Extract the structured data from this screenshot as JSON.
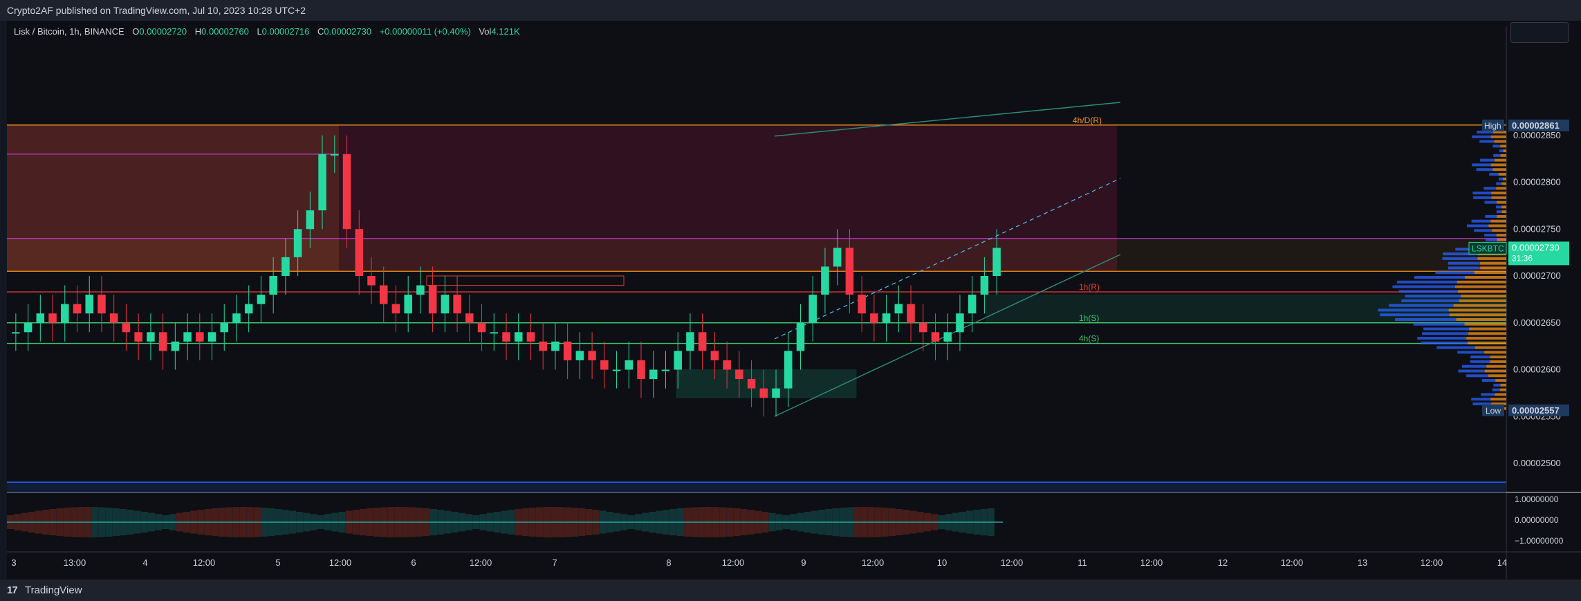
{
  "header": {
    "publisher": "Crypto2AF published on TradingView.com, Jul 10, 2023 10:28 UTC+2"
  },
  "legend": {
    "symbol": "Lisk / Bitcoin, 1h, BINANCE",
    "o_label": "O",
    "o": "0.00002720",
    "h_label": "H",
    "h": "0.00002760",
    "l_label": "L",
    "l": "0.00002716",
    "c_label": "C",
    "c": "0.00002730",
    "change": "+0.00000011 (+0.40%)",
    "vol_label": "Vol",
    "vol": "4.121K"
  },
  "footer": {
    "brand": "TradingView",
    "logo": "17"
  },
  "colors": {
    "up": "#26d9a1",
    "down": "#f23645",
    "bg": "#0d0f14",
    "orange": "#f7931a",
    "pink": "#e040fb",
    "green_line": "#3cc46a",
    "red_line": "#e53935"
  },
  "chart_data": {
    "type": "candlestick",
    "symbol": "LSKBTC",
    "interval": "1h",
    "y_axis": {
      "min": 2.45e-05,
      "max": 2.91e-05,
      "ticks": [
        "0.00002850",
        "0.00002800",
        "0.00002750",
        "0.00002700",
        "0.00002650",
        "0.00002600",
        "0.00002550",
        "0.00002500"
      ]
    },
    "x_axis_ticks": [
      "3",
      "13:00",
      "4",
      "12:00",
      "5",
      "12:00",
      "6",
      "12:00",
      "7",
      "8",
      "12:00",
      "9",
      "12:00",
      "10",
      "12:00",
      "11",
      "12:00",
      "12",
      "12:00",
      "13",
      "12:00",
      "14"
    ],
    "price_labels": {
      "high_label": "High",
      "high": "0.00002861",
      "low_label": "Low",
      "low": "0.00002557",
      "current_symbol": "LSKBTC",
      "current": "0.00002730",
      "countdown": "31:36"
    },
    "levels": [
      {
        "label": "4h/D(R)",
        "value": 2.861e-05,
        "color": "#f7931a"
      },
      {
        "label": "1h(R)",
        "value": 2.683e-05,
        "color": "#e53935"
      },
      {
        "label": "1h(S)",
        "value": 2.65e-05,
        "color": "#3cc46a"
      },
      {
        "label": "4h(S)",
        "value": 2.628e-05,
        "color": "#3cc46a"
      }
    ],
    "close_series": [
      2.64e-05,
      2.65e-05,
      2.66e-05,
      2.65e-05,
      2.67e-05,
      2.66e-05,
      2.68e-05,
      2.66e-05,
      2.65e-05,
      2.64e-05,
      2.63e-05,
      2.64e-05,
      2.62e-05,
      2.63e-05,
      2.64e-05,
      2.63e-05,
      2.64e-05,
      2.65e-05,
      2.66e-05,
      2.67e-05,
      2.68e-05,
      2.7e-05,
      2.72e-05,
      2.75e-05,
      2.77e-05,
      2.83e-05,
      2.83e-05,
      2.75e-05,
      2.7e-05,
      2.69e-05,
      2.67e-05,
      2.66e-05,
      2.68e-05,
      2.69e-05,
      2.66e-05,
      2.68e-05,
      2.66e-05,
      2.65e-05,
      2.64e-05,
      2.64e-05,
      2.63e-05,
      2.64e-05,
      2.63e-05,
      2.62e-05,
      2.63e-05,
      2.61e-05,
      2.62e-05,
      2.61e-05,
      2.6e-05,
      2.6e-05,
      2.61e-05,
      2.59e-05,
      2.6e-05,
      2.6e-05,
      2.62e-05,
      2.64e-05,
      2.62e-05,
      2.61e-05,
      2.6e-05,
      2.59e-05,
      2.58e-05,
      2.57e-05,
      2.58e-05,
      2.62e-05,
      2.65e-05,
      2.68e-05,
      2.71e-05,
      2.73e-05,
      2.68e-05,
      2.66e-05,
      2.65e-05,
      2.66e-05,
      2.67e-05,
      2.65e-05,
      2.64e-05,
      2.63e-05,
      2.64e-05,
      2.66e-05,
      2.68e-05,
      2.7e-05,
      2.73e-05
    ]
  }
}
